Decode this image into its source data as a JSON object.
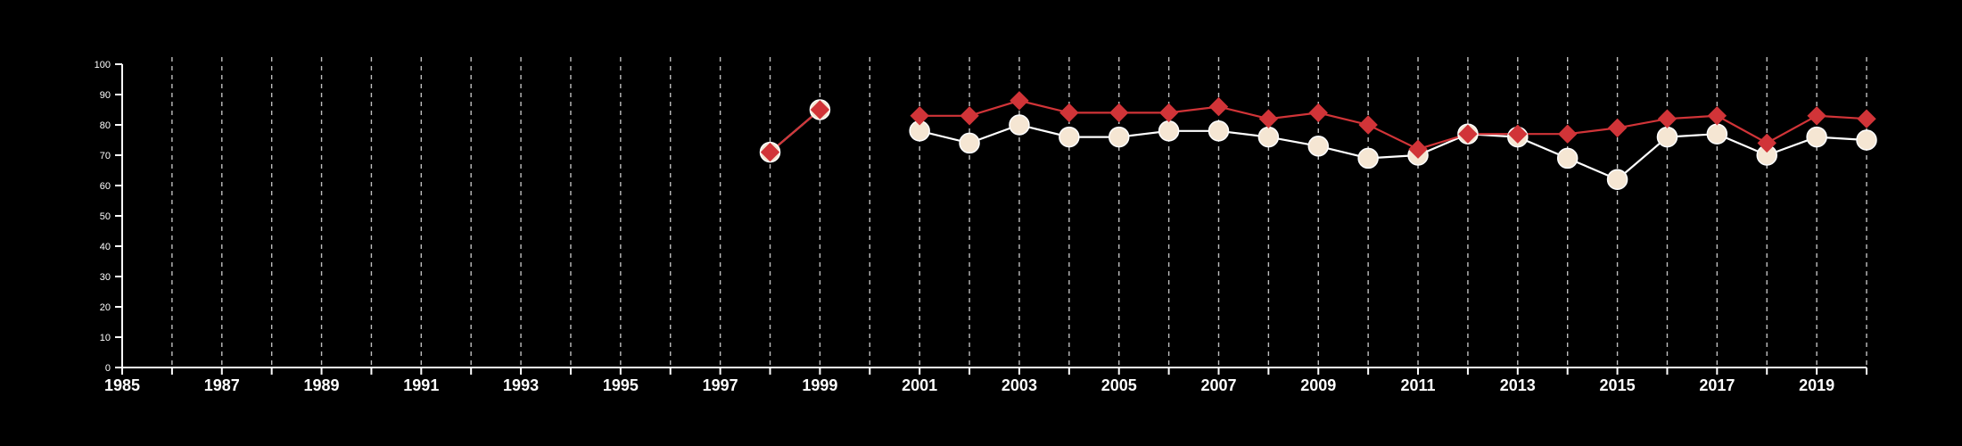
{
  "colors": {
    "background": "#000000",
    "axis": "#ffffff",
    "grid": "#bfbfbf",
    "series_cream_fill": "#f5e6d3",
    "series_cream_line": "#ffffff",
    "series_red": "#d13438"
  },
  "chart_data": {
    "type": "line",
    "title": "",
    "xlabel": "",
    "ylabel": "",
    "xlim": [
      1985,
      2020
    ],
    "ylim": [
      0,
      100
    ],
    "x_ticks_labeled": [
      1985,
      1987,
      1989,
      1991,
      1993,
      1995,
      1997,
      1999,
      2001,
      2003,
      2005,
      2007,
      2009,
      2011,
      2013,
      2015,
      2017,
      2019
    ],
    "y_ticks": [
      0,
      10,
      20,
      30,
      40,
      50,
      60,
      70,
      80,
      90,
      100
    ],
    "grid": "vertical dashed lines at every year",
    "legend": "none",
    "series": [
      {
        "marker": "circle",
        "color": "#f5e6d3",
        "points": [
          [
            1998,
            71
          ],
          [
            1999,
            85
          ],
          [
            2001,
            78
          ],
          [
            2002,
            74
          ],
          [
            2003,
            80
          ],
          [
            2004,
            76
          ],
          [
            2005,
            76
          ],
          [
            2006,
            78
          ],
          [
            2007,
            78
          ],
          [
            2008,
            76
          ],
          [
            2009,
            73
          ],
          [
            2010,
            69
          ],
          [
            2011,
            70
          ],
          [
            2012,
            77
          ],
          [
            2013,
            76
          ],
          [
            2014,
            69
          ],
          [
            2015,
            62
          ],
          [
            2016,
            76
          ],
          [
            2017,
            77
          ],
          [
            2018,
            70
          ],
          [
            2019,
            76
          ],
          [
            2020,
            75
          ]
        ]
      },
      {
        "marker": "diamond",
        "color": "#d13438",
        "points": [
          [
            1998,
            71
          ],
          [
            1999,
            85
          ],
          [
            2001,
            83
          ],
          [
            2002,
            83
          ],
          [
            2003,
            88
          ],
          [
            2004,
            84
          ],
          [
            2005,
            84
          ],
          [
            2006,
            84
          ],
          [
            2007,
            86
          ],
          [
            2008,
            82
          ],
          [
            2009,
            84
          ],
          [
            2010,
            80
          ],
          [
            2011,
            72
          ],
          [
            2012,
            77
          ],
          [
            2013,
            77
          ],
          [
            2014,
            77
          ],
          [
            2015,
            79
          ],
          [
            2016,
            82
          ],
          [
            2017,
            83
          ],
          [
            2018,
            74
          ],
          [
            2019,
            83
          ],
          [
            2020,
            82
          ]
        ]
      }
    ]
  }
}
